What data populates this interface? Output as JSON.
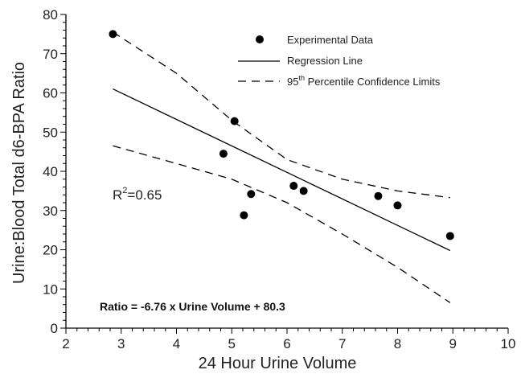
{
  "chart_data": {
    "type": "scatter",
    "xlabel": "24 Hour Urine Volume",
    "ylabel": "Urine:Blood Total d6-BPA Ratio",
    "xlim": [
      2,
      10
    ],
    "ylim": [
      0,
      80
    ],
    "xticks": [
      2,
      3,
      4,
      5,
      6,
      7,
      8,
      9,
      10
    ],
    "yticks": [
      0,
      10,
      20,
      30,
      40,
      50,
      60,
      70,
      80
    ],
    "grid": false,
    "legend_position": "top-right",
    "legend": {
      "data_label": "Experimental Data",
      "regression_label": "Regression Line",
      "ci_label_prefix": "95",
      "ci_label_sup": "th",
      "ci_label_suffix": " Percentile Confidence Limits"
    },
    "series": [
      {
        "name": "Experimental Data",
        "kind": "points",
        "points": [
          [
            2.85,
            75
          ],
          [
            4.85,
            44.5
          ],
          [
            5.05,
            52.8
          ],
          [
            5.22,
            28.8
          ],
          [
            5.35,
            34.2
          ],
          [
            6.12,
            36.3
          ],
          [
            6.3,
            35
          ],
          [
            7.65,
            33.7
          ],
          [
            8.0,
            31.3
          ],
          [
            8.95,
            23.5
          ]
        ]
      },
      {
        "name": "Regression Line",
        "kind": "line",
        "points": [
          [
            2.85,
            61
          ],
          [
            8.95,
            19.8
          ]
        ]
      },
      {
        "name": "95th Percentile Confidence Limits",
        "kind": "dashed",
        "upper": [
          [
            2.85,
            75.5
          ],
          [
            4,
            65
          ],
          [
            5,
            53
          ],
          [
            6,
            43
          ],
          [
            7,
            38
          ],
          [
            8,
            35
          ],
          [
            8.95,
            33.3
          ]
        ],
        "lower": [
          [
            2.85,
            46.5
          ],
          [
            4,
            42
          ],
          [
            5,
            38
          ],
          [
            6,
            32
          ],
          [
            7,
            24
          ],
          [
            8,
            15.5
          ],
          [
            8.95,
            6.5
          ]
        ]
      }
    ],
    "annotations": {
      "r2_base": "R",
      "r2_sup": "2",
      "r2_value": "=0.65",
      "equation": "Ratio = -6.76 x Urine Volume + 80.3"
    }
  }
}
